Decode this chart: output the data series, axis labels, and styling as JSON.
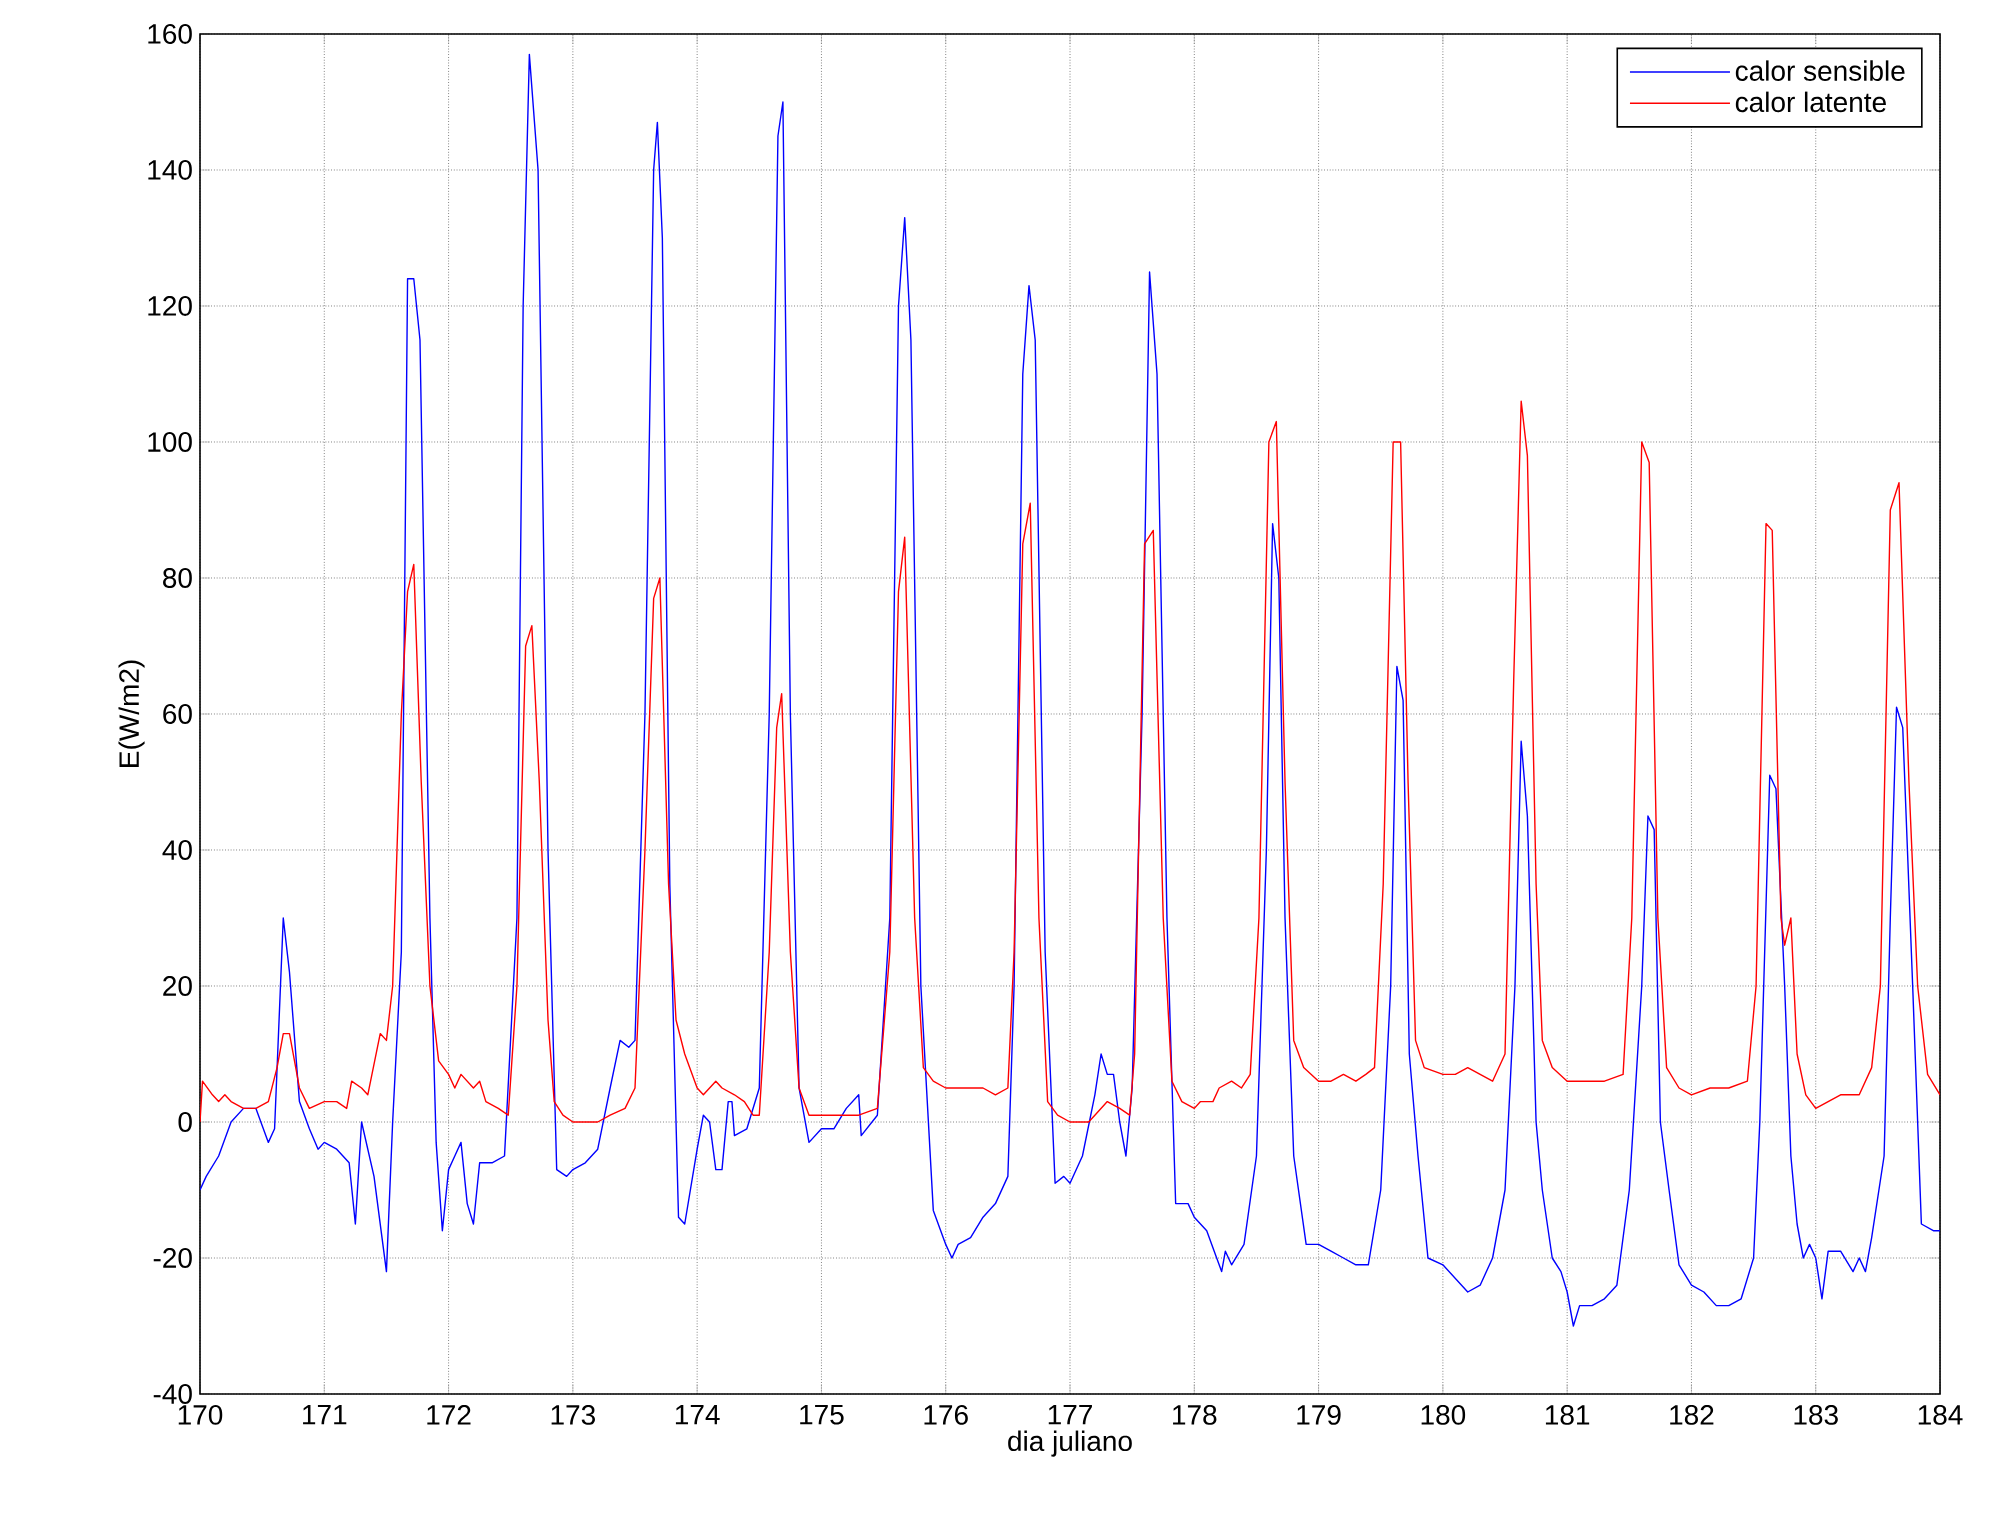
{
  "chart_data": {
    "type": "line",
    "xlabel": "dia juliano",
    "ylabel": "E(W/m2)",
    "xlim": [
      170,
      184
    ],
    "ylim": [
      -40,
      160
    ],
    "xticks": [
      170,
      171,
      172,
      173,
      174,
      175,
      176,
      177,
      178,
      179,
      180,
      181,
      182,
      183,
      184
    ],
    "yticks": [
      -40,
      -20,
      0,
      20,
      40,
      60,
      80,
      100,
      120,
      140,
      160
    ],
    "grid": true,
    "legend": "top right",
    "marker": "none",
    "line_style": "solid",
    "series": [
      {
        "name": "calor sensible",
        "color": "#0000ff",
        "x": [
          170.0,
          170.05,
          170.15,
          170.25,
          170.35,
          170.45,
          170.55,
          170.6,
          170.67,
          170.72,
          170.8,
          170.88,
          170.95,
          171.0,
          171.1,
          171.2,
          171.25,
          171.3,
          171.4,
          171.5,
          171.55,
          171.62,
          171.67,
          171.72,
          171.77,
          171.85,
          171.9,
          171.95,
          172.0,
          172.05,
          172.1,
          172.15,
          172.2,
          172.25,
          172.35,
          172.45,
          172.55,
          172.6,
          172.65,
          172.72,
          172.8,
          172.87,
          172.95,
          173.0,
          173.1,
          173.2,
          173.3,
          173.38,
          173.45,
          173.5,
          173.58,
          173.65,
          173.68,
          173.72,
          173.78,
          173.85,
          173.9,
          174.0,
          174.05,
          174.1,
          174.15,
          174.2,
          174.25,
          174.28,
          174.3,
          174.4,
          174.5,
          174.58,
          174.65,
          174.69,
          174.75,
          174.82,
          174.9,
          175.0,
          175.1,
          175.2,
          175.3,
          175.32,
          175.45,
          175.55,
          175.62,
          175.67,
          175.72,
          175.8,
          175.9,
          176.0,
          176.05,
          176.1,
          176.2,
          176.3,
          176.4,
          176.5,
          176.55,
          176.62,
          176.67,
          176.72,
          176.8,
          176.88,
          176.95,
          177.0,
          177.1,
          177.2,
          177.25,
          177.3,
          177.35,
          177.4,
          177.45,
          177.5,
          177.58,
          177.64,
          177.7,
          177.78,
          177.85,
          177.95,
          178.0,
          178.1,
          178.18,
          178.22,
          178.25,
          178.3,
          178.4,
          178.5,
          178.58,
          178.63,
          178.68,
          178.73,
          178.8,
          178.9,
          179.0,
          179.1,
          179.2,
          179.3,
          179.4,
          179.5,
          179.58,
          179.63,
          179.68,
          179.73,
          179.8,
          179.88,
          180.0,
          180.1,
          180.2,
          180.3,
          180.4,
          180.5,
          180.58,
          180.63,
          180.68,
          180.75,
          180.8,
          180.88,
          180.95,
          181.0,
          181.05,
          181.1,
          181.2,
          181.3,
          181.4,
          181.5,
          181.6,
          181.65,
          181.7,
          181.75,
          181.82,
          181.9,
          182.0,
          182.1,
          182.2,
          182.3,
          182.4,
          182.5,
          182.55,
          182.63,
          182.68,
          182.75,
          182.8,
          182.85,
          182.9,
          182.95,
          183.0,
          183.05,
          183.1,
          183.2,
          183.3,
          183.35,
          183.4,
          183.45,
          183.55,
          183.6,
          183.65,
          183.7,
          183.78,
          183.85,
          183.95,
          184.0
        ],
        "values": [
          -10,
          -8,
          -5,
          0,
          2,
          2,
          -3,
          -1,
          30,
          22,
          3,
          -1,
          -4,
          -3,
          -4,
          -6,
          -15,
          0,
          -8,
          -22,
          0,
          25,
          124,
          124,
          115,
          30,
          -3,
          -16,
          -7,
          -5,
          -3,
          -12,
          -15,
          -6,
          -6,
          -5,
          30,
          120,
          157,
          140,
          40,
          -7,
          -8,
          -7,
          -6,
          -4,
          5,
          12,
          11,
          12,
          60,
          140,
          147,
          130,
          35,
          -14,
          -15,
          -4,
          1,
          0,
          -7,
          -7,
          3,
          3,
          -2,
          -1,
          5,
          60,
          145,
          150,
          60,
          5,
          -3,
          -1,
          -1,
          2,
          4,
          -2,
          1,
          30,
          120,
          133,
          115,
          20,
          -13,
          -18,
          -20,
          -18,
          -17,
          -14,
          -12,
          -8,
          20,
          110,
          123,
          115,
          25,
          -9,
          -8,
          -9,
          -5,
          4,
          10,
          7,
          7,
          0,
          -5,
          5,
          60,
          125,
          110,
          30,
          -12,
          -12,
          -14,
          -16,
          -20,
          -22,
          -19,
          -21,
          -18,
          -5,
          40,
          88,
          80,
          30,
          -5,
          -18,
          -18,
          -19,
          -20,
          -21,
          -21,
          -10,
          20,
          67,
          62,
          10,
          -5,
          -20,
          -21,
          -23,
          -25,
          -24,
          -20,
          -10,
          20,
          56,
          45,
          0,
          -10,
          -20,
          -22,
          -25,
          -30,
          -27,
          -27,
          -26,
          -24,
          -10,
          20,
          45,
          43,
          0,
          -10,
          -21,
          -24,
          -25,
          -27,
          -27,
          -26,
          -20,
          0,
          51,
          49,
          20,
          -5,
          -15,
          -20,
          -18,
          -20,
          -26,
          -19,
          -19,
          -22,
          -20,
          -22,
          -17,
          -5,
          30,
          61,
          58,
          20,
          -15,
          -16,
          -16
        ]
      },
      {
        "name": "calor latente",
        "color": "#ff0000",
        "x": [
          170.0,
          170.02,
          170.1,
          170.15,
          170.2,
          170.25,
          170.35,
          170.45,
          170.55,
          170.62,
          170.67,
          170.72,
          170.8,
          170.88,
          171.0,
          171.1,
          171.18,
          171.22,
          171.3,
          171.35,
          171.45,
          171.5,
          171.55,
          171.62,
          171.67,
          171.72,
          171.78,
          171.85,
          171.92,
          172.0,
          172.05,
          172.1,
          172.2,
          172.25,
          172.3,
          172.4,
          172.48,
          172.55,
          172.62,
          172.67,
          172.73,
          172.8,
          172.85,
          172.92,
          173.0,
          173.2,
          173.3,
          173.42,
          173.5,
          173.58,
          173.65,
          173.7,
          173.77,
          173.83,
          173.9,
          174.0,
          174.05,
          174.15,
          174.2,
          174.3,
          174.38,
          174.45,
          174.5,
          174.58,
          174.64,
          174.68,
          174.75,
          174.82,
          174.9,
          175.0,
          175.3,
          175.45,
          175.55,
          175.62,
          175.67,
          175.75,
          175.82,
          175.9,
          176.0,
          176.3,
          176.4,
          176.5,
          176.55,
          176.62,
          176.68,
          176.75,
          176.82,
          176.9,
          177.0,
          177.15,
          177.2,
          177.3,
          177.4,
          177.48,
          177.52,
          177.6,
          177.67,
          177.75,
          177.82,
          177.9,
          178.0,
          178.05,
          178.15,
          178.2,
          178.3,
          178.38,
          178.45,
          178.52,
          178.6,
          178.66,
          178.73,
          178.8,
          178.88,
          179.0,
          179.1,
          179.2,
          179.3,
          179.38,
          179.45,
          179.52,
          179.6,
          179.66,
          179.72,
          179.78,
          179.85,
          180.0,
          180.1,
          180.2,
          180.3,
          180.4,
          180.5,
          180.57,
          180.63,
          180.68,
          180.75,
          180.8,
          180.88,
          181.0,
          181.3,
          181.45,
          181.52,
          181.6,
          181.66,
          181.73,
          181.8,
          181.9,
          182.0,
          182.15,
          182.3,
          182.45,
          182.52,
          182.6,
          182.65,
          182.72,
          182.75,
          182.8,
          182.85,
          182.92,
          183.0,
          183.1,
          183.2,
          183.35,
          183.45,
          183.52,
          183.6,
          183.67,
          183.75,
          183.82,
          183.9,
          184.0
        ],
        "values": [
          0,
          6,
          4,
          3,
          4,
          3,
          2,
          2,
          3,
          8,
          13,
          13,
          5,
          2,
          3,
          3,
          2,
          6,
          5,
          4,
          13,
          12,
          20,
          60,
          78,
          82,
          50,
          20,
          9,
          7,
          5,
          7,
          5,
          6,
          3,
          2,
          1,
          20,
          70,
          73,
          50,
          15,
          3,
          1,
          0,
          0,
          1,
          2,
          5,
          40,
          77,
          80,
          35,
          15,
          10,
          5,
          4,
          6,
          5,
          4,
          3,
          1,
          1,
          25,
          58,
          63,
          25,
          5,
          1,
          1,
          1,
          2,
          25,
          78,
          86,
          30,
          8,
          6,
          5,
          5,
          4,
          5,
          25,
          85,
          91,
          30,
          3,
          1,
          0,
          0,
          1,
          3,
          2,
          1,
          10,
          85,
          87,
          30,
          6,
          3,
          2,
          3,
          3,
          5,
          6,
          5,
          7,
          30,
          100,
          103,
          50,
          12,
          8,
          6,
          6,
          7,
          6,
          7,
          8,
          35,
          100,
          100,
          50,
          12,
          8,
          7,
          7,
          8,
          7,
          6,
          10,
          65,
          106,
          98,
          35,
          12,
          8,
          6,
          6,
          7,
          30,
          100,
          97,
          30,
          8,
          5,
          4,
          5,
          5,
          6,
          20,
          88,
          87,
          30,
          26,
          30,
          10,
          4,
          2,
          3,
          4,
          4,
          8,
          20,
          90,
          94,
          50,
          20,
          7,
          4
        ]
      }
    ]
  }
}
